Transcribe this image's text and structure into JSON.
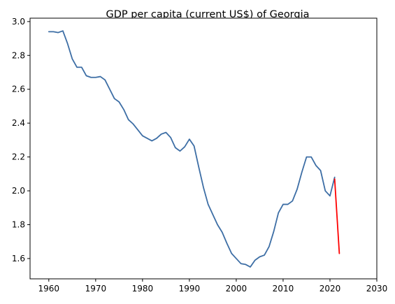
{
  "chart_data": {
    "type": "line",
    "title": "GDP per capita (current US$) of Georgia",
    "xlabel": "",
    "ylabel": "",
    "xlim": [
      1956,
      2030
    ],
    "ylim": [
      1.48,
      3.02
    ],
    "xticks": [
      1960,
      1970,
      1980,
      1990,
      2000,
      2010,
      2020,
      2030
    ],
    "xtick_labels": [
      "1960",
      "1970",
      "1980",
      "1990",
      "2000",
      "2010",
      "2020",
      "2030"
    ],
    "yticks": [
      1.6,
      1.8,
      2.0,
      2.2,
      2.4,
      2.6,
      2.8,
      3.0
    ],
    "ytick_labels": [
      "1.6",
      "1.8",
      "2.0",
      "2.2",
      "2.4",
      "2.6",
      "2.8",
      "3.0"
    ],
    "grid": false,
    "series": [
      {
        "color": "#3d6ea5",
        "x": [
          1960,
          1961,
          1962,
          1963,
          1964,
          1965,
          1966,
          1967,
          1968,
          1969,
          1970,
          1971,
          1972,
          1973,
          1974,
          1975,
          1976,
          1977,
          1978,
          1979,
          1980,
          1981,
          1982,
          1983,
          1984,
          1985,
          1986,
          1987,
          1988,
          1989,
          1990,
          1991,
          1992,
          1993,
          1994,
          1995,
          1996,
          1997,
          1998,
          1999,
          2000,
          2001,
          2002,
          2003,
          2004,
          2005,
          2006,
          2007,
          2008,
          2009,
          2010,
          2011,
          2012,
          2013,
          2014,
          2015,
          2016,
          2017,
          2018,
          2019,
          2020,
          2021
        ],
        "y": [
          2.94,
          2.94,
          2.935,
          2.945,
          2.87,
          2.78,
          2.73,
          2.73,
          2.68,
          2.67,
          2.67,
          2.675,
          2.655,
          2.6,
          2.545,
          2.525,
          2.48,
          2.42,
          2.395,
          2.36,
          2.325,
          2.31,
          2.295,
          2.31,
          2.335,
          2.345,
          2.315,
          2.255,
          2.235,
          2.26,
          2.305,
          2.265,
          2.14,
          2.02,
          1.92,
          1.86,
          1.8,
          1.755,
          1.69,
          1.63,
          1.6,
          1.57,
          1.565,
          1.55,
          1.59,
          1.61,
          1.62,
          1.67,
          1.76,
          1.87,
          1.92,
          1.92,
          1.94,
          2.01,
          2.11,
          2.2,
          2.2,
          2.15,
          2.12,
          2.0,
          1.97,
          2.08
        ]
      },
      {
        "color": "#ff0000",
        "x": [
          2021,
          2022
        ],
        "y": [
          2.07,
          1.63
        ]
      }
    ]
  }
}
